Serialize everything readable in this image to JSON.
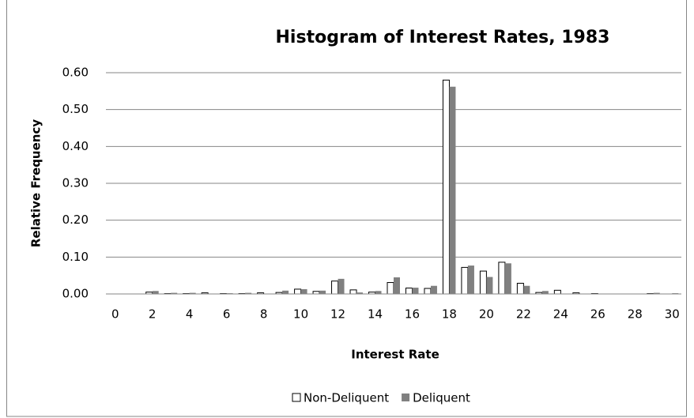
{
  "chart_data": {
    "type": "bar",
    "title": "Histogram of Interest Rates, 1983",
    "x_label": "Interest Rate",
    "y_label": "Relative Frequency",
    "categories": [
      0,
      null,
      2,
      null,
      4,
      null,
      6,
      null,
      8,
      null,
      10,
      null,
      12,
      null,
      14,
      null,
      16,
      null,
      18,
      null,
      20,
      null,
      22,
      null,
      24,
      null,
      26,
      null,
      28,
      null,
      30
    ],
    "series": [
      {
        "name": "Non-Deliquent",
        "color": "#ffffff",
        "values": [
          0,
          0,
          0.005,
          0.001,
          0.001,
          0.003,
          0.001,
          0.001,
          0.003,
          0.004,
          0.013,
          0.007,
          0.035,
          0.011,
          0.005,
          0.031,
          0.016,
          0.015,
          0.58,
          0.072,
          0.062,
          0.086,
          0.029,
          0.004,
          0.01,
          0.003,
          0.001,
          0,
          0,
          0.001,
          0
        ]
      },
      {
        "name": "Deliquent",
        "color": "#808080",
        "values": [
          0,
          0,
          0.008,
          0.003,
          0.003,
          0.001,
          0.002,
          0.003,
          0.001,
          0.009,
          0.013,
          0.009,
          0.041,
          0.004,
          0.008,
          0.045,
          0.017,
          0.022,
          0.562,
          0.077,
          0.046,
          0.083,
          0.022,
          0.008,
          0.001,
          0.001,
          0.001,
          0.001,
          0.001,
          0.003,
          0.002
        ]
      }
    ],
    "ylim": [
      0,
      0.6
    ],
    "yticks": [
      {
        "value": 0,
        "label": "0.00"
      },
      {
        "value": 0.1,
        "label": "0.10"
      },
      {
        "value": 0.2,
        "label": "0.20"
      },
      {
        "value": 0.3,
        "label": "0.30"
      },
      {
        "value": 0.4,
        "label": "0.40"
      },
      {
        "value": 0.5,
        "label": "0.50"
      },
      {
        "value": 0.6,
        "label": "0.60"
      }
    ],
    "grid": true,
    "legend": "bottom"
  }
}
